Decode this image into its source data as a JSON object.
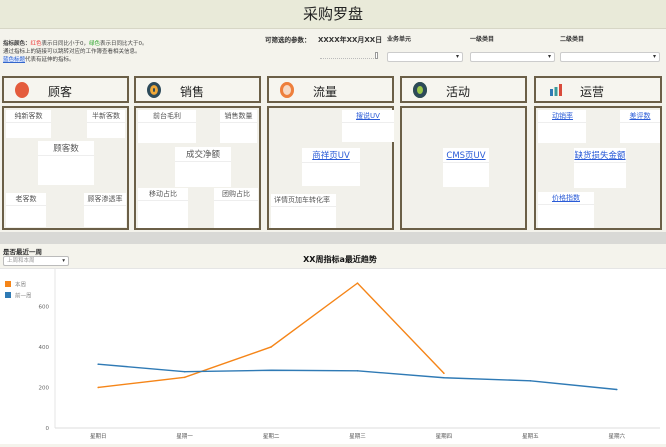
{
  "title": "采购罗盘",
  "note": {
    "prefix": "指标颜色：",
    "red": "红色",
    "mid1": "表示日同比小于0，",
    "green": "绿色",
    "mid2": "表示日同比大于0。",
    "line2": "通过指标上的链接可以跳转对应的工作簿查看相关信息。",
    "blue": "蓝色标题",
    "line3": "代表有延伸的指标。"
  },
  "filters": {
    "label": "可筛选的参数：",
    "date": "XXXX年XX月XX日",
    "business_unit": "业务单元",
    "category1": "一级类目",
    "category2": "二级类目"
  },
  "sections": [
    {
      "name": "顾客",
      "icon": "customer-avatar-icon",
      "metrics": [
        "纯新客数",
        "半新客数",
        "顾客数",
        "老客数",
        "顾客渗透率"
      ]
    },
    {
      "name": "销售",
      "icon": "sales-document-icon",
      "metrics": [
        "前台毛利",
        "销售数量",
        "成交净额",
        "移动占比",
        "团购占比"
      ]
    },
    {
      "name": "流量",
      "icon": "traffic-browser-icon",
      "metrics": [
        "搜说UV",
        "商祥页UV",
        "详情页加车转化率"
      ]
    },
    {
      "name": "活动",
      "icon": "activity-gift-icon",
      "metrics": [
        "CMS页UV"
      ]
    },
    {
      "name": "运营",
      "icon": "bar-chart-icon",
      "metrics": [
        "动销率",
        "差评数",
        "缺货损失金额",
        "价格指数"
      ]
    }
  ],
  "recent": {
    "label": "是否最近一周",
    "selected": "上周和本周"
  },
  "chart_data": {
    "type": "line",
    "title": "XX周指标a最近趋势",
    "categories": [
      "星期日",
      "星期一",
      "星期二",
      "星期三",
      "星期四",
      "星期五",
      "星期六"
    ],
    "series": [
      {
        "name": "本周",
        "color": "#f58518",
        "values": [
          200,
          250,
          400,
          715,
          270,
          null,
          null
        ]
      },
      {
        "name": "前一周",
        "color": "#2f7ab5",
        "values": [
          315,
          278,
          285,
          282,
          248,
          233,
          190
        ]
      }
    ],
    "yticks": [
      0,
      200,
      400,
      600
    ],
    "ylim": [
      0,
      760
    ],
    "legend": "top-left",
    "grid": false
  }
}
